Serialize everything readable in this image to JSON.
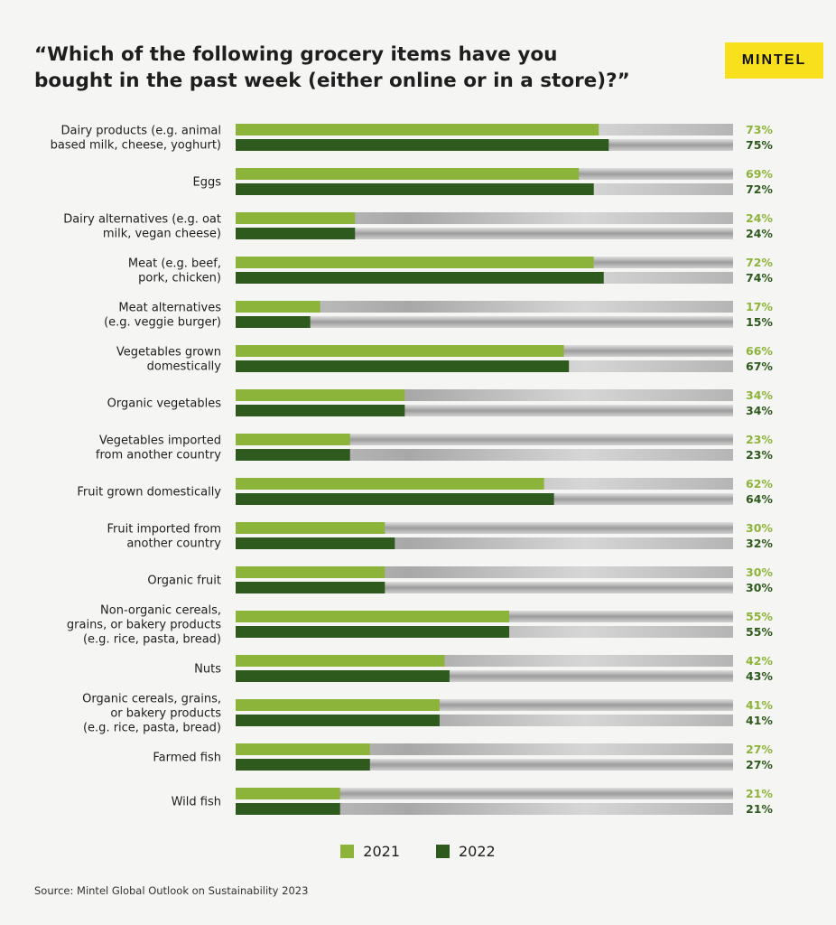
{
  "title": "“Which of the following grocery items have you bought in the past week (either online or in a store)?”",
  "brand": "MINTEL",
  "source": "Source: Mintel Global Outlook on Sustainability 2023",
  "colors": {
    "series_2021": "#8db43a",
    "series_2022": "#2e5a1d",
    "bg": "#f5f5f3"
  },
  "chart_data": {
    "type": "bar",
    "orientation": "horizontal",
    "title": "“Which of the following grocery items have you bought in the past week (either online or in a store)?”",
    "xlim": [
      0,
      100
    ],
    "legend": "bottom-center",
    "categories": [
      [
        "Dairy products (e.g. animal",
        "based milk, cheese, yoghurt)"
      ],
      [
        "Eggs"
      ],
      [
        "Dairy alternatives (e.g. oat",
        "milk, vegan cheese)"
      ],
      [
        "Meat (e.g. beef,",
        "pork, chicken)"
      ],
      [
        "Meat alternatives",
        "(e.g. veggie burger)"
      ],
      [
        "Vegetables grown",
        "domestically"
      ],
      [
        "Organic vegetables"
      ],
      [
        "Vegetables imported",
        "from another country"
      ],
      [
        "Fruit grown domestically"
      ],
      [
        "Fruit imported from",
        "another country"
      ],
      [
        "Organic fruit"
      ],
      [
        "Non-organic cereals,",
        "grains, or bakery products",
        "(e.g. rice, pasta, bread)"
      ],
      [
        "Nuts"
      ],
      [
        "Organic cereals, grains,",
        "or bakery products",
        "(e.g. rice, pasta, bread)"
      ],
      [
        "Farmed fish"
      ],
      [
        "Wild fish"
      ]
    ],
    "series": [
      {
        "name": "2021",
        "values": [
          73,
          69,
          24,
          72,
          17,
          66,
          34,
          23,
          62,
          30,
          30,
          55,
          42,
          41,
          27,
          21
        ],
        "labels": [
          "73%",
          "69%",
          "24%",
          "72%",
          "17%",
          "66%",
          "34%",
          "23%",
          "62%",
          "30%",
          "30%",
          "55%",
          "42%",
          "41%",
          "27%",
          "21%"
        ]
      },
      {
        "name": "2022",
        "values": [
          75,
          72,
          24,
          74,
          15,
          67,
          34,
          23,
          64,
          32,
          30,
          55,
          43,
          41,
          27,
          21
        ],
        "labels": [
          "75%",
          "72%",
          "24%",
          "74%",
          "15%",
          "67%",
          "34%",
          "23%",
          "64%",
          "32%",
          "30%",
          "55%",
          "43%",
          "41%",
          "27%",
          "21%"
        ]
      }
    ]
  }
}
